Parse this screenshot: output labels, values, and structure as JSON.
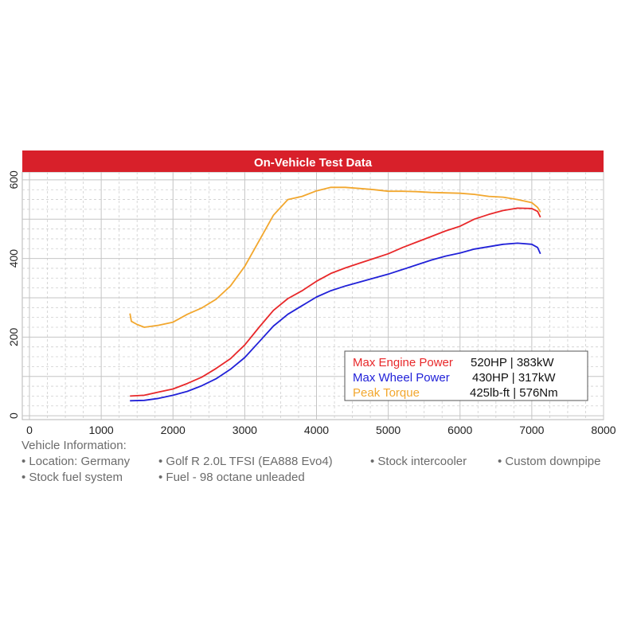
{
  "chart_data": {
    "type": "line",
    "title": "On-Vehicle Test Data",
    "xlabel": "",
    "ylabel": "",
    "xlim": [
      -100,
      8000
    ],
    "ylim": [
      -10,
      620
    ],
    "x_ticks": [
      0,
      1000,
      2000,
      3000,
      4000,
      5000,
      6000,
      7000,
      8000
    ],
    "y_ticks": [
      0,
      200,
      400,
      600
    ],
    "grid": true,
    "legend_placement": "bottom-right",
    "series": [
      {
        "name": "Max Engine Power",
        "color": "#e8282a",
        "points": [
          [
            1400,
            50
          ],
          [
            1600,
            52
          ],
          [
            1800,
            60
          ],
          [
            2000,
            68
          ],
          [
            2200,
            82
          ],
          [
            2400,
            98
          ],
          [
            2600,
            120
          ],
          [
            2800,
            145
          ],
          [
            3000,
            180
          ],
          [
            3200,
            225
          ],
          [
            3400,
            268
          ],
          [
            3600,
            298
          ],
          [
            3800,
            318
          ],
          [
            4000,
            342
          ],
          [
            4200,
            362
          ],
          [
            4400,
            376
          ],
          [
            4600,
            388
          ],
          [
            4800,
            400
          ],
          [
            5000,
            412
          ],
          [
            5200,
            428
          ],
          [
            5400,
            442
          ],
          [
            5600,
            456
          ],
          [
            5800,
            470
          ],
          [
            6000,
            482
          ],
          [
            6200,
            500
          ],
          [
            6400,
            512
          ],
          [
            6600,
            522
          ],
          [
            6800,
            528
          ],
          [
            7000,
            527
          ],
          [
            7080,
            520
          ],
          [
            7120,
            505
          ]
        ]
      },
      {
        "name": "Max Wheel Power",
        "color": "#2121d8",
        "points": [
          [
            1400,
            38
          ],
          [
            1600,
            39
          ],
          [
            1800,
            44
          ],
          [
            2000,
            52
          ],
          [
            2200,
            62
          ],
          [
            2400,
            76
          ],
          [
            2600,
            94
          ],
          [
            2800,
            118
          ],
          [
            3000,
            148
          ],
          [
            3200,
            188
          ],
          [
            3400,
            228
          ],
          [
            3600,
            258
          ],
          [
            3800,
            280
          ],
          [
            4000,
            302
          ],
          [
            4200,
            318
          ],
          [
            4400,
            330
          ],
          [
            4600,
            340
          ],
          [
            4800,
            350
          ],
          [
            5000,
            360
          ],
          [
            5200,
            372
          ],
          [
            5400,
            384
          ],
          [
            5600,
            396
          ],
          [
            5800,
            406
          ],
          [
            6000,
            414
          ],
          [
            6200,
            424
          ],
          [
            6400,
            430
          ],
          [
            6600,
            436
          ],
          [
            6800,
            439
          ],
          [
            7000,
            436
          ],
          [
            7080,
            428
          ],
          [
            7120,
            412
          ]
        ]
      },
      {
        "name": "Peak Torque",
        "color": "#f2a72e",
        "points": [
          [
            1400,
            260
          ],
          [
            1420,
            240
          ],
          [
            1500,
            232
          ],
          [
            1600,
            225
          ],
          [
            1800,
            230
          ],
          [
            2000,
            238
          ],
          [
            2200,
            258
          ],
          [
            2400,
            274
          ],
          [
            2600,
            296
          ],
          [
            2800,
            330
          ],
          [
            3000,
            380
          ],
          [
            3200,
            445
          ],
          [
            3400,
            510
          ],
          [
            3600,
            550
          ],
          [
            3800,
            558
          ],
          [
            4000,
            572
          ],
          [
            4200,
            581
          ],
          [
            4400,
            581
          ],
          [
            4600,
            578
          ],
          [
            4800,
            575
          ],
          [
            5000,
            571
          ],
          [
            5200,
            571
          ],
          [
            5400,
            570
          ],
          [
            5600,
            568
          ],
          [
            5800,
            567
          ],
          [
            6000,
            566
          ],
          [
            6200,
            563
          ],
          [
            6400,
            558
          ],
          [
            6600,
            556
          ],
          [
            6800,
            550
          ],
          [
            7000,
            542
          ],
          [
            7080,
            530
          ],
          [
            7120,
            518
          ]
        ]
      }
    ],
    "legend": [
      {
        "label": "Max Engine Power",
        "value": "520HP | 383kW",
        "color": "#e8282a"
      },
      {
        "label": "Max Wheel Power",
        "value": "430HP | 317kW",
        "color": "#2121d8"
      },
      {
        "label": "Peak Torque",
        "value": "425lb-ft | 576Nm",
        "color": "#f2a72e"
      }
    ]
  },
  "vehicle_info": {
    "heading": "Vehicle Information:",
    "items_row1": [
      "• Location: Germany",
      "• Golf R 2.0L TFSI (EA888 Evo4)",
      "• Stock intercooler",
      "• Custom downpipe"
    ],
    "items_row2": [
      "• Stock fuel system",
      "• Fuel - 98 octane unleaded"
    ]
  }
}
